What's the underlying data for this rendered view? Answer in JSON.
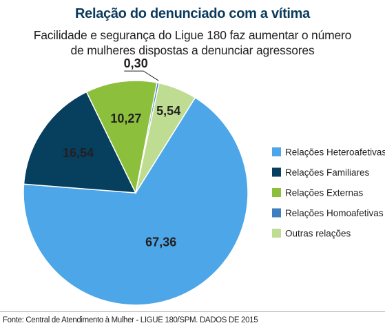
{
  "chart_data": {
    "type": "pie",
    "title": "Relação do denunciado com a vítima",
    "subtitle_lines": [
      "Facilidade e segurança do Ligue 180 faz aumentar o número",
      "de mulheres dispostas a denunciar agressores"
    ],
    "categories": [
      "Relações Heteroafetivas",
      "Relações Familiares",
      "Relações Externas",
      "Relações Homoafetivas",
      "Outras relações"
    ],
    "values": [
      67.36,
      16.54,
      10.27,
      0.3,
      5.54
    ],
    "value_labels": [
      "67,36",
      "16,54",
      "10,27",
      "0,30",
      "5,54"
    ],
    "colors": [
      "#4da6e8",
      "#073f5f",
      "#8bbf3c",
      "#3f7fc0",
      "#bedd92"
    ],
    "legend_position": "right"
  },
  "source_text": "Fonte: Central de Atendimento à Mulher - LIGUE 180/SPM. DADOS DE 2015"
}
